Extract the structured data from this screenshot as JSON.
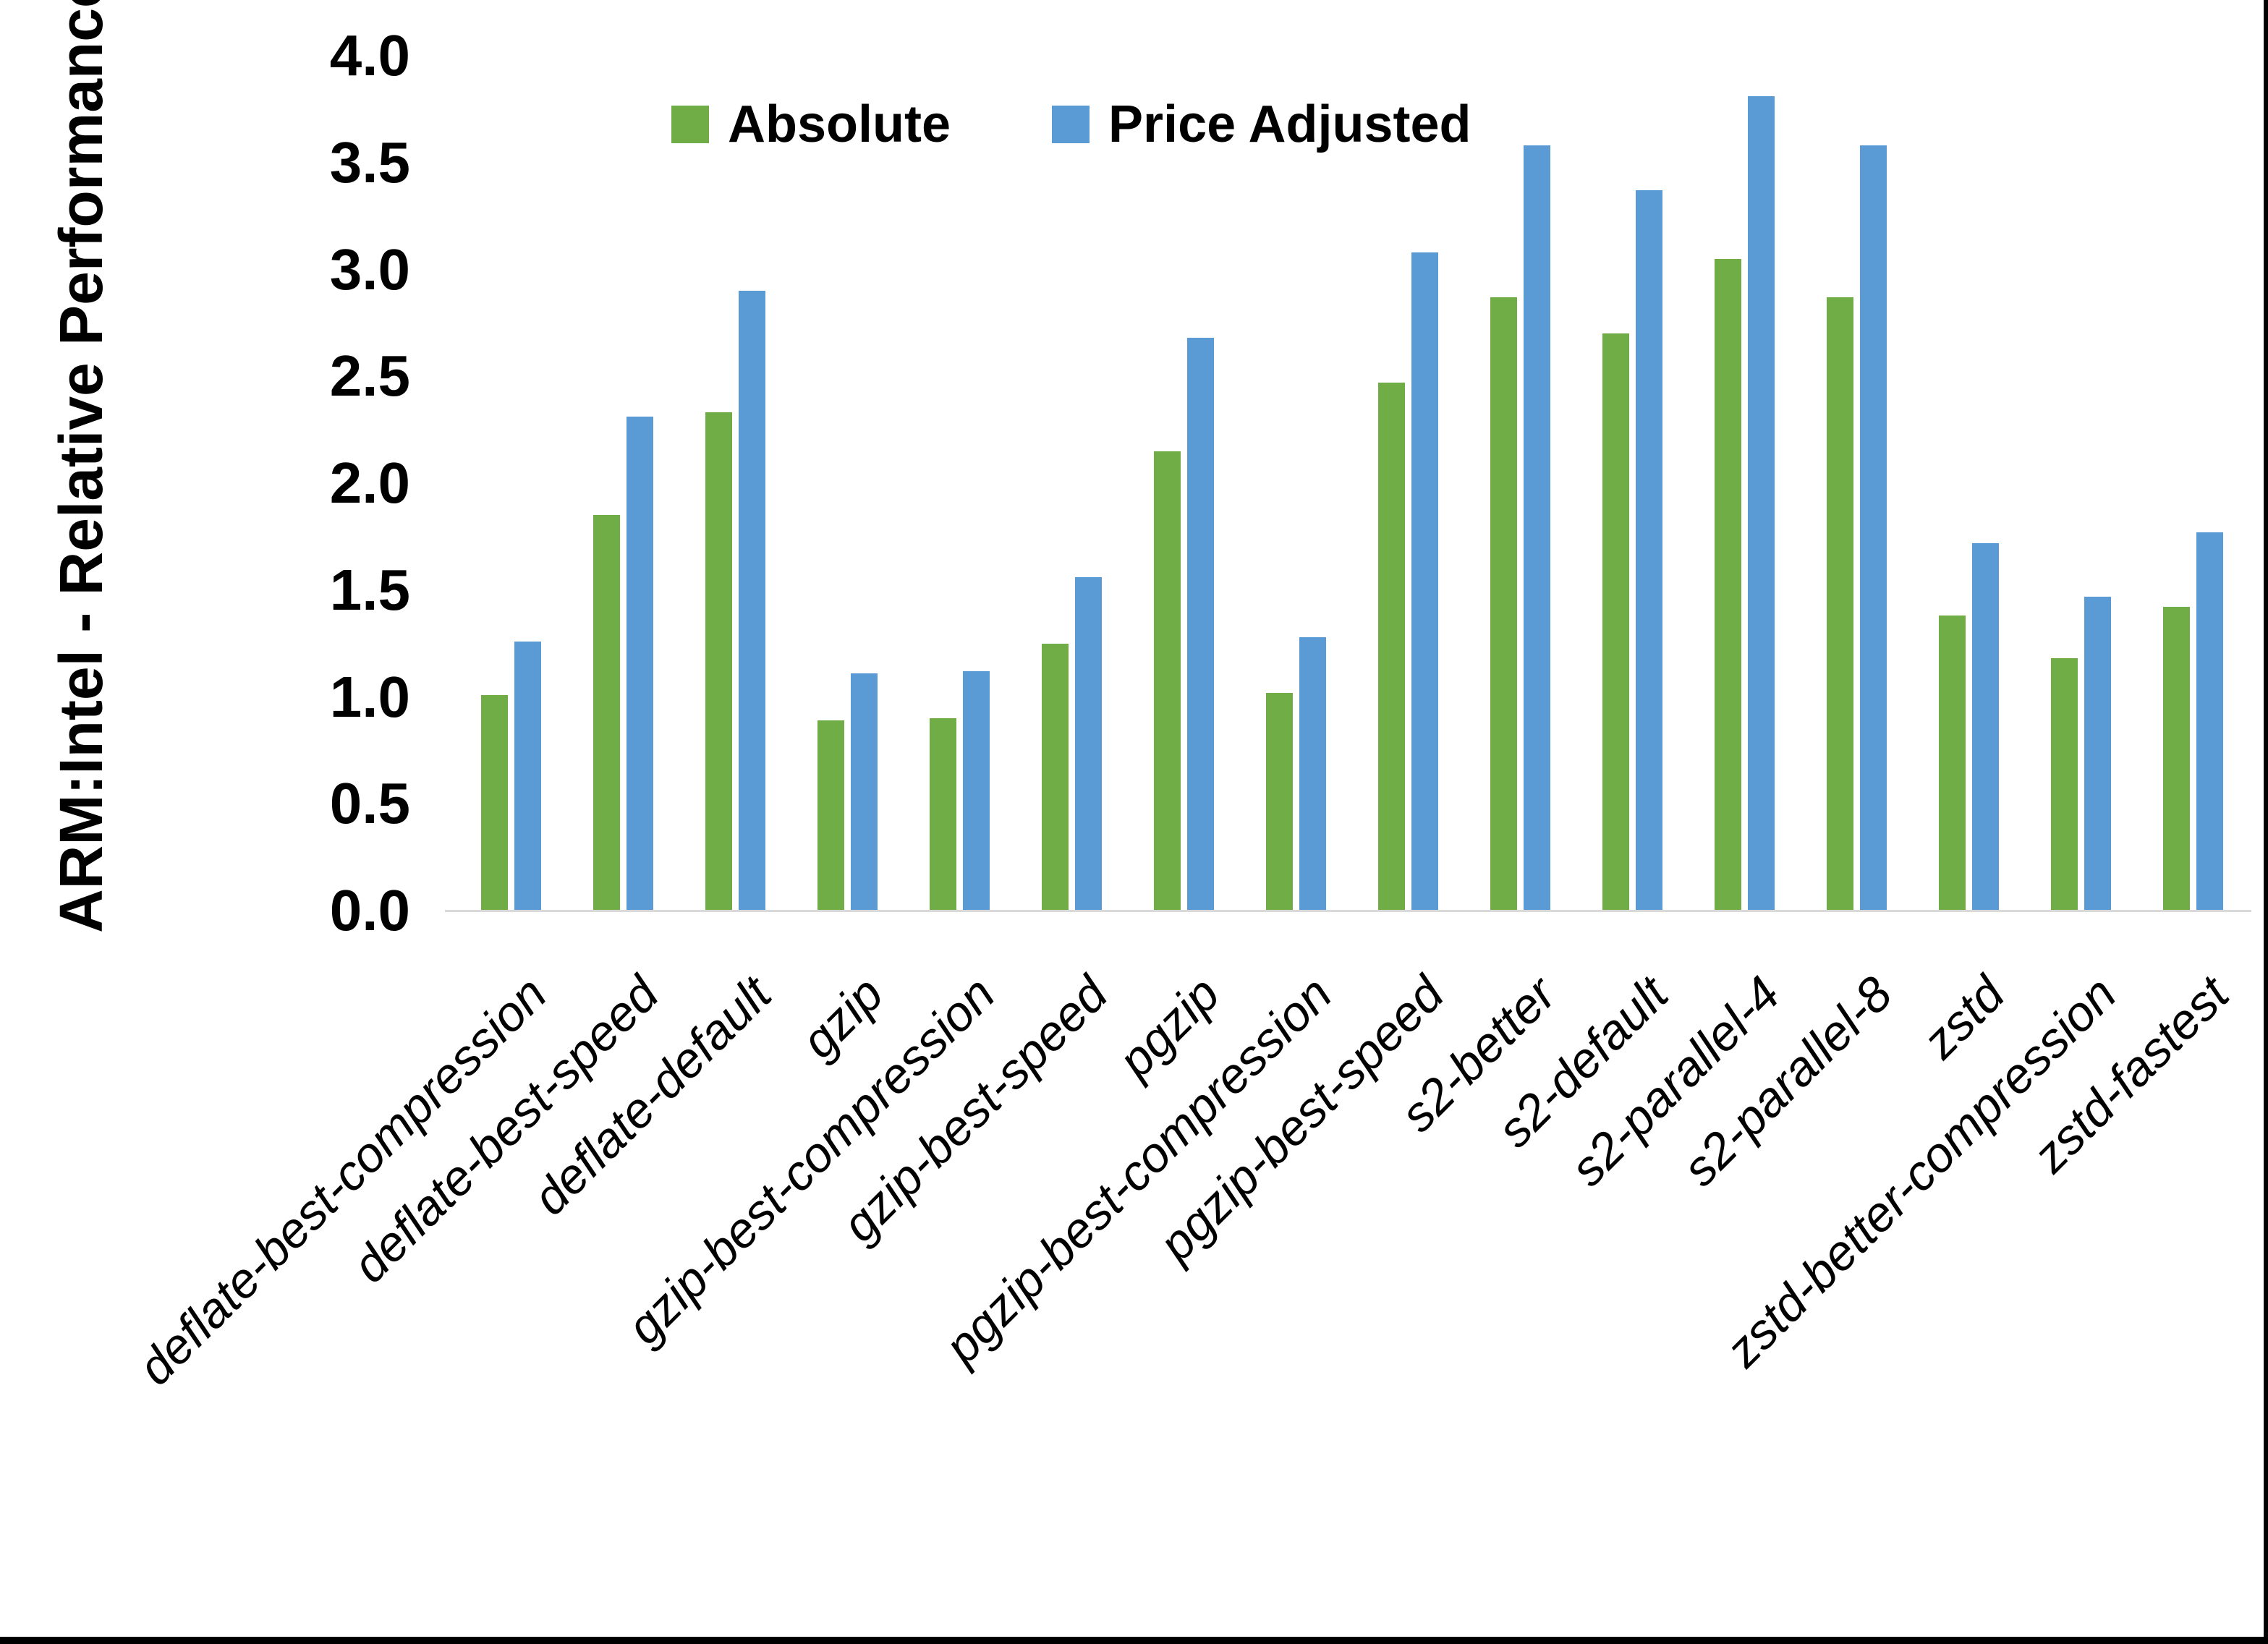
{
  "chart_data": {
    "type": "bar",
    "title": "",
    "xlabel": "",
    "ylabel": "ARM:Intel - Relative Performance",
    "ylim": [
      0.0,
      4.0
    ],
    "ytick_labels": [
      "0.0",
      "0.5",
      "1.0",
      "1.5",
      "2.0",
      "2.5",
      "3.0",
      "3.5",
      "4.0"
    ],
    "grid": false,
    "legend_position": "top",
    "axis_line_color": "#D9D9D9",
    "categories": [
      "deflate-best-compression",
      "deflate-best-speed",
      "deflate-default",
      "gzip",
      "gzip-best-compression",
      "gzip-best-speed",
      "pgzip",
      "pgzip-best-compression",
      "pgzip-best-speed",
      "s2-better",
      "s2-default",
      "s2-parallel-4",
      "s2-parallel-8",
      "zstd",
      "zstd-better-compression",
      "zstd-fastest"
    ],
    "series": [
      {
        "name": "Absolute",
        "color": "#70AD47",
        "values": [
          1.01,
          1.85,
          2.33,
          0.89,
          0.9,
          1.25,
          2.15,
          1.02,
          2.47,
          2.87,
          2.7,
          3.05,
          2.87,
          1.38,
          1.18,
          1.42
        ]
      },
      {
        "name": "Price Adjusted",
        "color": "#5B9BD5",
        "values": [
          1.26,
          2.31,
          2.9,
          1.11,
          1.12,
          1.56,
          2.68,
          1.28,
          3.08,
          3.58,
          3.37,
          3.81,
          3.58,
          1.72,
          1.47,
          1.77
        ]
      }
    ]
  }
}
